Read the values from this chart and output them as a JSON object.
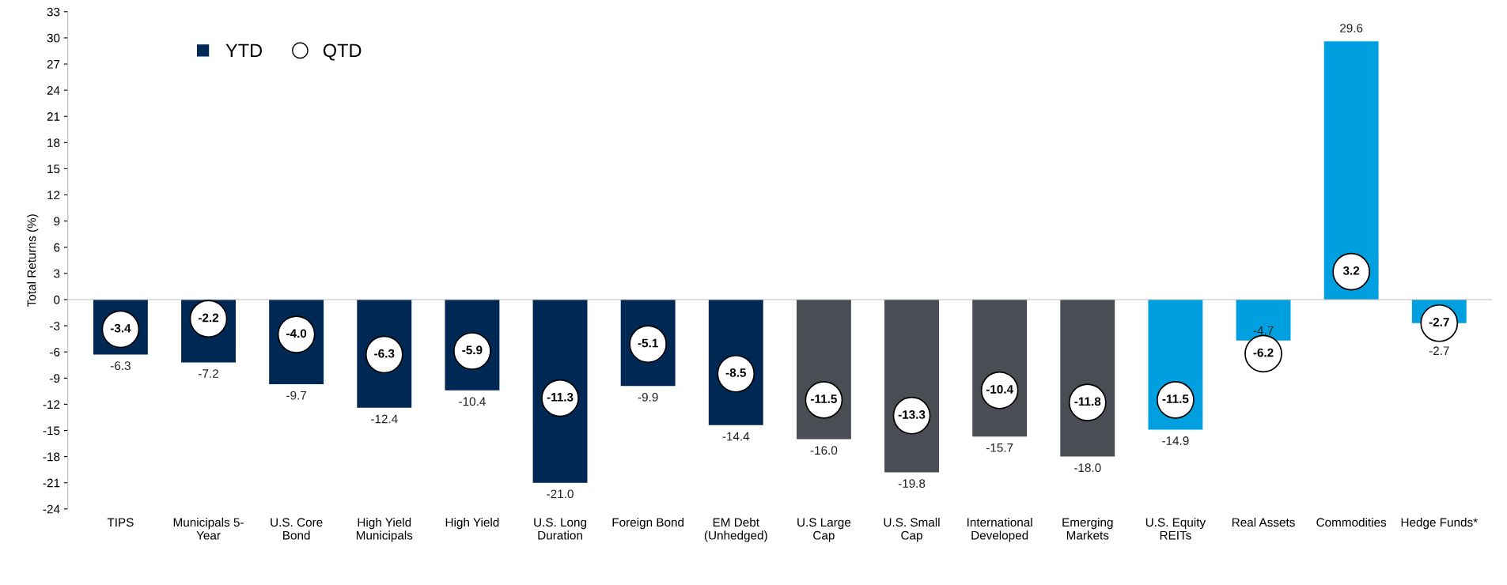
{
  "chart_data": {
    "type": "bar",
    "ylabel": "Total Returns (%)",
    "categories": [
      "TIPS",
      "Municipals 5-\nYear",
      "U.S. Core\nBond",
      "High Yield\nMunicipals",
      "High Yield",
      "U.S. Long\nDuration",
      "Foreign Bond",
      "EM Debt\n(Unhedged)",
      "U.S Large\nCap",
      "U.S. Small\nCap",
      "International\nDeveloped",
      "Emerging\nMarkets",
      "U.S. Equity\nREITs",
      "Real Assets",
      "Commodities",
      "Hedge Funds*"
    ],
    "series": [
      {
        "name": "YTD",
        "color": "#002855",
        "colors": [
          "#002855",
          "#002855",
          "#002855",
          "#002855",
          "#002855",
          "#002855",
          "#002855",
          "#002855",
          "#4a4e54",
          "#4a4e54",
          "#4a4e54",
          "#4a4e54",
          "#00a0e0",
          "#00a0e0",
          "#00a0e0",
          "#00a0e0"
        ],
        "values": [
          -6.3,
          -7.2,
          -9.7,
          -12.4,
          -10.4,
          -21.0,
          -9.9,
          -14.4,
          -16.0,
          -19.8,
          -15.7,
          -18.0,
          -14.9,
          -4.7,
          29.6,
          -2.7
        ],
        "value_labels": [
          "-6.3",
          "-7.2",
          "-9.7",
          "-12.4",
          "-10.4",
          "-21.0",
          "-9.9",
          "-14.4",
          "-16.0",
          "-19.8",
          "-15.7",
          "-18.0",
          "-14.9",
          "-4.7",
          "29.6",
          "-2.7"
        ]
      },
      {
        "name": "QTD",
        "type": "scatter",
        "color": "#000000",
        "marker": "circle",
        "values": [
          -3.4,
          -2.2,
          -4.0,
          -6.3,
          -5.9,
          -11.3,
          -5.1,
          -8.5,
          -11.5,
          -13.3,
          -10.4,
          -11.8,
          -11.5,
          -6.2,
          3.2,
          -2.7
        ],
        "value_labels": [
          "-3.4",
          "-2.2",
          "-4.0",
          "-6.3",
          "-5.9",
          "-11.3",
          "-5.1",
          "-8.5",
          "-11.5",
          "-13.3",
          "-10.4",
          "-11.8",
          "-11.5",
          "-6.2",
          "3.2",
          "-2.7"
        ]
      }
    ],
    "ylim": [
      -24,
      33
    ],
    "yticks": [
      -24,
      -21,
      -18,
      -15,
      -12,
      -9,
      -6,
      -3,
      0,
      3,
      6,
      9,
      12,
      15,
      18,
      21,
      24,
      27,
      30,
      33
    ],
    "legend": "top left"
  }
}
